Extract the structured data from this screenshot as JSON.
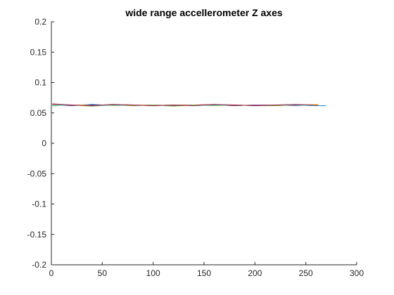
{
  "chart_data": {
    "type": "line",
    "title": "wide range accellerometer Z axes",
    "xlabel": "",
    "ylabel": "",
    "xlim": [
      0,
      300
    ],
    "ylim": [
      -0.2,
      0.2
    ],
    "x_ticks": [
      0,
      50,
      100,
      150,
      200,
      250,
      300
    ],
    "y_ticks": [
      -0.2,
      -0.15,
      -0.1,
      -0.05,
      0,
      0.05,
      0.1,
      0.15,
      0.2
    ],
    "x_tick_labels": [
      "0",
      "50",
      "100",
      "150",
      "200",
      "250",
      "300"
    ],
    "y_tick_labels": [
      "-0.2",
      "-0.15",
      "-0.1",
      "-0.05",
      "0",
      "0.05",
      "0.1",
      "0.15",
      "0.2"
    ],
    "grid": false,
    "legend": "none",
    "series": [
      {
        "color": "#0072BD",
        "x": [
          1,
          20,
          40,
          60,
          80,
          100,
          120,
          140,
          160,
          180,
          200,
          220,
          240,
          255,
          270
        ],
        "y": [
          0.063,
          0.062,
          0.064,
          0.062,
          0.063,
          0.062,
          0.063,
          0.062,
          0.063,
          0.062,
          0.063,
          0.062,
          0.063,
          0.062,
          0.062
        ]
      },
      {
        "color": "#D95319",
        "x": [
          1,
          20,
          40,
          60,
          80,
          100,
          120,
          140,
          160,
          180,
          200,
          220,
          240,
          262
        ],
        "y": [
          0.064,
          0.063,
          0.062,
          0.064,
          0.063,
          0.062,
          0.063,
          0.063,
          0.064,
          0.062,
          0.063,
          0.062,
          0.063,
          0.063
        ]
      },
      {
        "color": "#EDB120",
        "x": [
          1,
          20,
          40,
          60,
          80,
          100,
          120,
          140,
          160,
          180,
          200,
          220,
          240,
          262
        ],
        "y": [
          0.062,
          0.063,
          0.063,
          0.062,
          0.063,
          0.063,
          0.062,
          0.063,
          0.062,
          0.063,
          0.062,
          0.063,
          0.062,
          0.064
        ]
      },
      {
        "color": "#7E2F8E",
        "x": [
          1,
          20,
          40,
          60,
          80,
          100,
          120,
          140,
          160,
          180,
          200,
          220,
          240,
          258
        ],
        "y": [
          0.063,
          0.062,
          0.063,
          0.063,
          0.062,
          0.063,
          0.062,
          0.063,
          0.063,
          0.062,
          0.063,
          0.063,
          0.062,
          0.063
        ]
      },
      {
        "color": "#77AC30",
        "x": [
          1,
          20,
          40,
          60,
          80,
          100,
          120,
          140,
          160,
          180,
          200,
          220,
          240,
          258
        ],
        "y": [
          0.062,
          0.063,
          0.061,
          0.063,
          0.062,
          0.063,
          0.061,
          0.063,
          0.062,
          0.063,
          0.062,
          0.062,
          0.063,
          0.062
        ]
      },
      {
        "color": "#4DBEEE",
        "x": [
          1,
          20,
          40,
          60,
          80,
          100,
          120,
          140,
          160,
          180,
          200,
          220,
          240,
          258
        ],
        "y": [
          0.063,
          0.063,
          0.062,
          0.063,
          0.063,
          0.062,
          0.063,
          0.062,
          0.063,
          0.063,
          0.062,
          0.063,
          0.063,
          0.062
        ]
      },
      {
        "color": "#A2142F",
        "x": [
          1,
          20,
          40,
          60,
          80,
          100,
          120,
          140,
          160,
          180,
          200,
          220,
          240,
          258
        ],
        "y": [
          0.065,
          0.063,
          0.062,
          0.064,
          0.063,
          0.062,
          0.063,
          0.062,
          0.064,
          0.063,
          0.062,
          0.063,
          0.064,
          0.063
        ]
      }
    ]
  }
}
